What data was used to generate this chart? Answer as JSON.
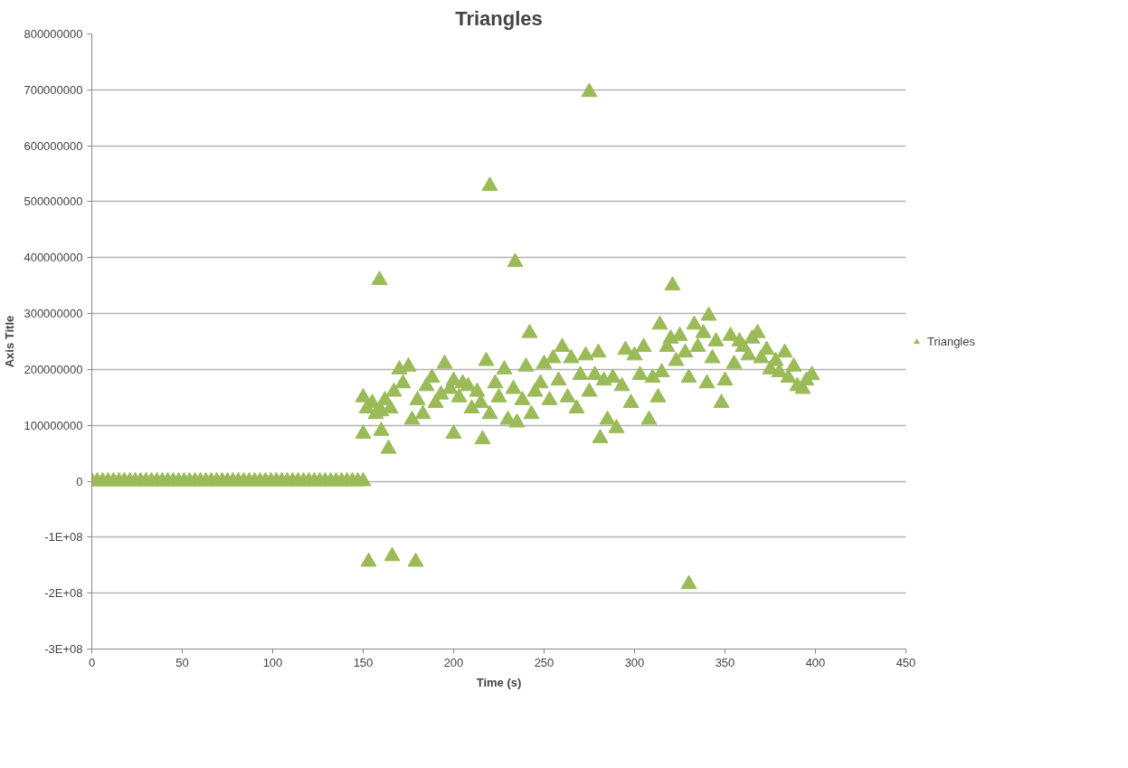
{
  "chart_data": {
    "type": "scatter",
    "title": "Triangles",
    "xlabel": "Time (s)",
    "ylabel": "Axis Title",
    "marker": "triangle",
    "grid": "y",
    "legend": "right",
    "xlim": [
      0,
      450
    ],
    "xticks": [
      0,
      50,
      100,
      150,
      200,
      250,
      300,
      350,
      400,
      450
    ],
    "ylim": [
      -300000000,
      800000000
    ],
    "yticks": [
      {
        "value": -300000000,
        "label": "-3E+08"
      },
      {
        "value": -200000000,
        "label": "-2E+08"
      },
      {
        "value": -100000000,
        "label": "-1E+08"
      },
      0,
      100000000,
      200000000,
      300000000,
      400000000,
      500000000,
      600000000,
      700000000,
      800000000
    ],
    "series": [
      {
        "name": "Triangles",
        "color": "#9bbb59",
        "x": [
          0,
          3,
          6,
          9,
          12,
          15,
          18,
          21,
          24,
          27,
          30,
          33,
          36,
          39,
          42,
          45,
          48,
          51,
          54,
          57,
          60,
          63,
          66,
          69,
          72,
          75,
          78,
          81,
          84,
          87,
          90,
          93,
          96,
          99,
          102,
          105,
          108,
          111,
          114,
          117,
          120,
          123,
          126,
          129,
          132,
          135,
          138,
          141,
          144,
          147,
          150,
          150,
          152,
          155,
          157,
          160,
          162,
          165,
          167,
          170,
          172,
          175,
          177,
          180,
          183,
          185,
          188,
          190,
          193,
          195,
          198,
          200,
          203,
          205,
          208,
          210,
          213,
          215,
          218,
          220,
          223,
          225,
          228,
          230,
          233,
          235,
          238,
          240,
          243,
          245,
          248,
          250,
          253,
          255,
          258,
          260,
          263,
          265,
          268,
          270,
          273,
          275,
          278,
          280,
          283,
          285,
          288,
          290,
          293,
          295,
          298,
          300,
          303,
          305,
          308,
          310,
          313,
          315,
          318,
          320,
          323,
          325,
          328,
          330,
          333,
          335,
          338,
          340,
          343,
          345,
          348,
          350,
          353,
          355,
          358,
          360,
          363,
          365,
          368,
          370,
          373,
          375,
          378,
          380,
          383,
          385,
          388,
          390,
          393,
          395,
          398,
          159,
          220,
          234,
          275,
          321,
          242,
          341,
          314,
          153,
          166,
          179,
          330,
          150,
          160,
          164,
          216,
          200,
          281
        ],
        "values": [
          0,
          0,
          0,
          0,
          0,
          0,
          0,
          0,
          0,
          0,
          0,
          0,
          0,
          0,
          0,
          0,
          0,
          0,
          0,
          0,
          0,
          0,
          0,
          0,
          0,
          0,
          0,
          0,
          0,
          0,
          0,
          0,
          0,
          0,
          0,
          0,
          0,
          0,
          0,
          0,
          0,
          0,
          0,
          0,
          0,
          0,
          0,
          0,
          0,
          0,
          0,
          150000000.0,
          130000000.0,
          140000000.0,
          120000000.0,
          125000000.0,
          145000000.0,
          130000000.0,
          160000000.0,
          200000000.0,
          175000000.0,
          205000000.0,
          110000000.0,
          145000000.0,
          120000000.0,
          170000000.0,
          185000000.0,
          140000000.0,
          155000000.0,
          210000000.0,
          165000000.0,
          180000000.0,
          150000000.0,
          175000000.0,
          170000000.0,
          130000000.0,
          160000000.0,
          140000000.0,
          215000000.0,
          120000000.0,
          175000000.0,
          150000000.0,
          200000000.0,
          110000000.0,
          165000000.0,
          105000000.0,
          145000000.0,
          205000000.0,
          120000000.0,
          160000000.0,
          175000000.0,
          210000000.0,
          145000000.0,
          220000000.0,
          180000000.0,
          240000000.0,
          150000000.0,
          220000000.0,
          130000000.0,
          190000000.0,
          225000000.0,
          160000000.0,
          190000000.0,
          230000000.0,
          180000000.0,
          110000000.0,
          185000000.0,
          95000000.0,
          170000000.0,
          235000000.0,
          140000000.0,
          225000000.0,
          190000000.0,
          240000000.0,
          110000000.0,
          185000000.0,
          150000000.0,
          195000000.0,
          240000000.0,
          255000000.0,
          215000000.0,
          260000000.0,
          230000000.0,
          185000000.0,
          280000000.0,
          240000000.0,
          265000000.0,
          175000000.0,
          220000000.0,
          250000000.0,
          140000000.0,
          180000000.0,
          260000000.0,
          210000000.0,
          250000000.0,
          240000000.0,
          225000000.0,
          255000000.0,
          265000000.0,
          220000000.0,
          235000000.0,
          200000000.0,
          215000000.0,
          195000000.0,
          230000000.0,
          185000000.0,
          205000000.0,
          170000000.0,
          165000000.0,
          180000000.0,
          190000000.0,
          360000000.0,
          528000000.0,
          392000000.0,
          696000000.0,
          350000000.0,
          265000000.0,
          296000000.0,
          280000000.0,
          -144000000.0,
          -134000000.0,
          -144000000.0,
          -184000000.0,
          85000000.0,
          90000000.0,
          58000000.0,
          75000000.0,
          85000000.0,
          77000000.0
        ]
      }
    ]
  }
}
